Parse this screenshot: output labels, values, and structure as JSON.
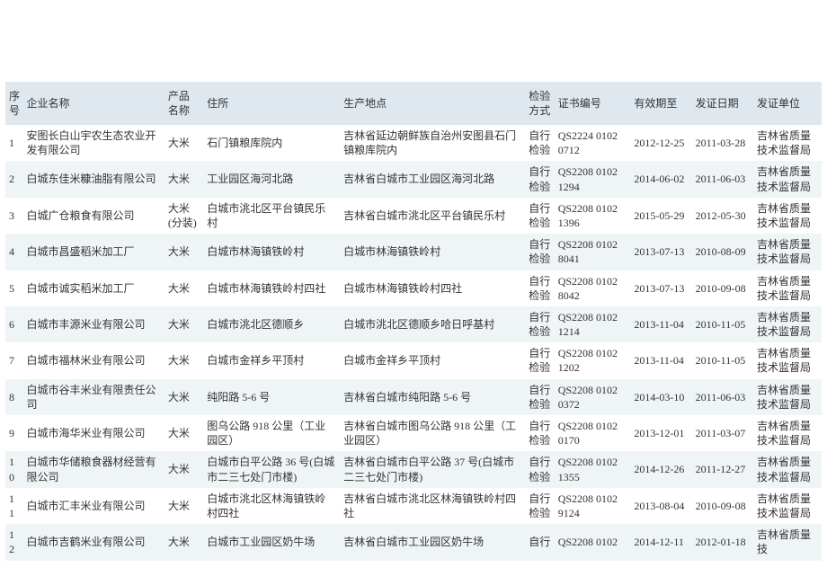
{
  "table": {
    "background_color": "#ffffff",
    "header_bg": "#dfe8ef",
    "row_even_bg": "#eff4f7",
    "row_odd_bg": "#ffffff",
    "text_color": "#333333",
    "font_family": "SimSun",
    "font_size_pt": 9,
    "columns": [
      {
        "key": "seq",
        "label": "序号"
      },
      {
        "key": "ent",
        "label": "企业名称"
      },
      {
        "key": "prod",
        "label": "产品名称"
      },
      {
        "key": "addr",
        "label": "住所"
      },
      {
        "key": "site",
        "label": "生产地点"
      },
      {
        "key": "insp",
        "label": "检验方式"
      },
      {
        "key": "cert",
        "label": "证书编号"
      },
      {
        "key": "valid",
        "label": "有效期至"
      },
      {
        "key": "issue",
        "label": "发证日期"
      },
      {
        "key": "org",
        "label": "发证单位"
      }
    ],
    "rows": [
      {
        "seq": "1",
        "ent": "安图长白山宇农生态农业开发有限公司",
        "prod": "大米",
        "addr": "石门镇粮库院内",
        "site": "吉林省延边朝鲜族自治州安图县石门镇粮库院内",
        "insp": "自行检验",
        "cert": "QS2224 0102 0712",
        "valid": "2012-12-25",
        "issue": "2011-03-28",
        "org": "吉林省质量技术监督局"
      },
      {
        "seq": "2",
        "ent": "白城东佳米糠油脂有限公司",
        "prod": "大米",
        "addr": "工业园区海河北路",
        "site": "吉林省白城市工业园区海河北路",
        "insp": "自行检验",
        "cert": "QS2208 0102 1294",
        "valid": "2014-06-02",
        "issue": "2011-06-03",
        "org": "吉林省质量技术监督局"
      },
      {
        "seq": "3",
        "ent": "白城广仓粮食有限公司",
        "prod": "大米(分装)",
        "addr": "白城市洮北区平台镇民乐村",
        "site": "吉林省白城市洮北区平台镇民乐村",
        "insp": "自行检验",
        "cert": "QS2208 0102 1396",
        "valid": "2015-05-29",
        "issue": "2012-05-30",
        "org": "吉林省质量技术监督局"
      },
      {
        "seq": "4",
        "ent": "白城市昌盛稻米加工厂",
        "prod": "大米",
        "addr": "白城市林海镇铁岭村",
        "site": "白城市林海镇铁岭村",
        "insp": "自行检验",
        "cert": "QS2208 0102 8041",
        "valid": "2013-07-13",
        "issue": "2010-08-09",
        "org": "吉林省质量技术监督局"
      },
      {
        "seq": "5",
        "ent": "白城市诚实稻米加工厂",
        "prod": "大米",
        "addr": "白城市林海镇铁岭村四社",
        "site": "白城市林海镇铁岭村四社",
        "insp": "自行检验",
        "cert": "QS2208 0102 8042",
        "valid": "2013-07-13",
        "issue": "2010-09-08",
        "org": "吉林省质量技术监督局"
      },
      {
        "seq": "6",
        "ent": "白城市丰源米业有限公司",
        "prod": "大米",
        "addr": "白城市洮北区德顺乡",
        "site": "白城市洮北区德顺乡哈日呼基村",
        "insp": "自行检验",
        "cert": "QS2208 0102 1214",
        "valid": "2013-11-04",
        "issue": "2010-11-05",
        "org": "吉林省质量技术监督局"
      },
      {
        "seq": "7",
        "ent": "白城市福林米业有限公司",
        "prod": "大米",
        "addr": "白城市金祥乡平顶村",
        "site": "白城市金祥乡平顶村",
        "insp": "自行检验",
        "cert": "QS2208 0102 1202",
        "valid": "2013-11-04",
        "issue": "2010-11-05",
        "org": "吉林省质量技术监督局"
      },
      {
        "seq": "8",
        "ent": "白城市谷丰米业有限责任公司",
        "prod": "大米",
        "addr": "纯阳路 5-6 号",
        "site": "吉林省白城市纯阳路 5-6 号",
        "insp": "自行检验",
        "cert": "QS2208 0102 0372",
        "valid": "2014-03-10",
        "issue": "2011-06-03",
        "org": "吉林省质量技术监督局"
      },
      {
        "seq": "9",
        "ent": "白城市海华米业有限公司",
        "prod": "大米",
        "addr": "图乌公路 918 公里（工业园区）",
        "site": "吉林省白城市图乌公路 918 公里（工业园区）",
        "insp": "自行检验",
        "cert": "QS2208 0102 0170",
        "valid": "2013-12-01",
        "issue": "2011-03-07",
        "org": "吉林省质量技术监督局"
      },
      {
        "seq": "10",
        "ent": "白城市华储粮食器材经营有限公司",
        "prod": "大米",
        "addr": "白城市白平公路 36 号(白城市二三七处门市楼)",
        "site": "吉林省白城市白平公路 37 号(白城市二三七处门市楼)",
        "insp": "自行检验",
        "cert": "QS2208 0102 1355",
        "valid": "2014-12-26",
        "issue": "2011-12-27",
        "org": "吉林省质量技术监督局"
      },
      {
        "seq": "11",
        "ent": "白城市汇丰米业有限公司",
        "prod": "大米",
        "addr": "白城市洮北区林海镇铁岭村四社",
        "site": "吉林省白城市洮北区林海镇铁岭村四社",
        "insp": "自行检验",
        "cert": "QS2208 0102 9124",
        "valid": "2013-08-04",
        "issue": "2010-09-08",
        "org": "吉林省质量技术监督局"
      },
      {
        "seq": "12",
        "ent": "白城市吉鹤米业有限公司",
        "prod": "大米",
        "addr": "白城市工业园区奶牛场",
        "site": "吉林省白城市工业园区奶牛场",
        "insp": "自行",
        "cert": "QS2208 0102",
        "valid": "2014-12-11",
        "issue": "2012-01-18",
        "org": "吉林省质量技"
      }
    ]
  }
}
